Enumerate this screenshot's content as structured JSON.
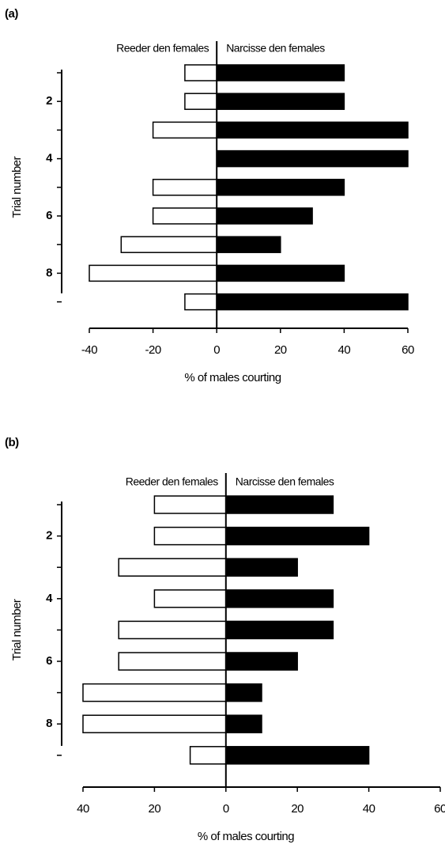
{
  "chart_data": [
    {
      "type": "diverging-bar",
      "panel_label": "(a)",
      "xlabel": "% of males courting",
      "ylabel": "Trial number",
      "categories": [
        null,
        "2",
        null,
        "4",
        null,
        "6",
        null,
        "8",
        null
      ],
      "series": [
        {
          "name": "Reeder den females",
          "color": "#ffffff",
          "values": [
            -10,
            -10,
            -20,
            0,
            -20,
            -20,
            -30,
            -40,
            -10
          ]
        },
        {
          "name": "Narcisse den females",
          "color": "#000000",
          "values": [
            40,
            40,
            60,
            60,
            40,
            30,
            20,
            40,
            60
          ]
        }
      ],
      "xlim": [
        -40,
        60
      ],
      "xticks": [
        -40,
        -20,
        0,
        20,
        40,
        60
      ]
    },
    {
      "type": "diverging-bar",
      "panel_label": "(b)",
      "xlabel": "% of males courting",
      "ylabel": "Trial number",
      "categories": [
        null,
        "2",
        null,
        "4",
        null,
        "6",
        null,
        "8",
        null
      ],
      "series": [
        {
          "name": "Reeder den females",
          "color": "#ffffff",
          "values": [
            -20,
            -20,
            -30,
            -20,
            -30,
            -30,
            -40,
            -40,
            -10
          ]
        },
        {
          "name": "Narcisse den females",
          "color": "#000000",
          "values": [
            30,
            40,
            20,
            30,
            30,
            20,
            10,
            10,
            40
          ]
        }
      ],
      "xlim": [
        -40,
        60
      ],
      "xticks": [
        {
          "value": -40,
          "label": "40"
        },
        {
          "value": -20,
          "label": "20"
        },
        0,
        20,
        40,
        60
      ]
    }
  ]
}
